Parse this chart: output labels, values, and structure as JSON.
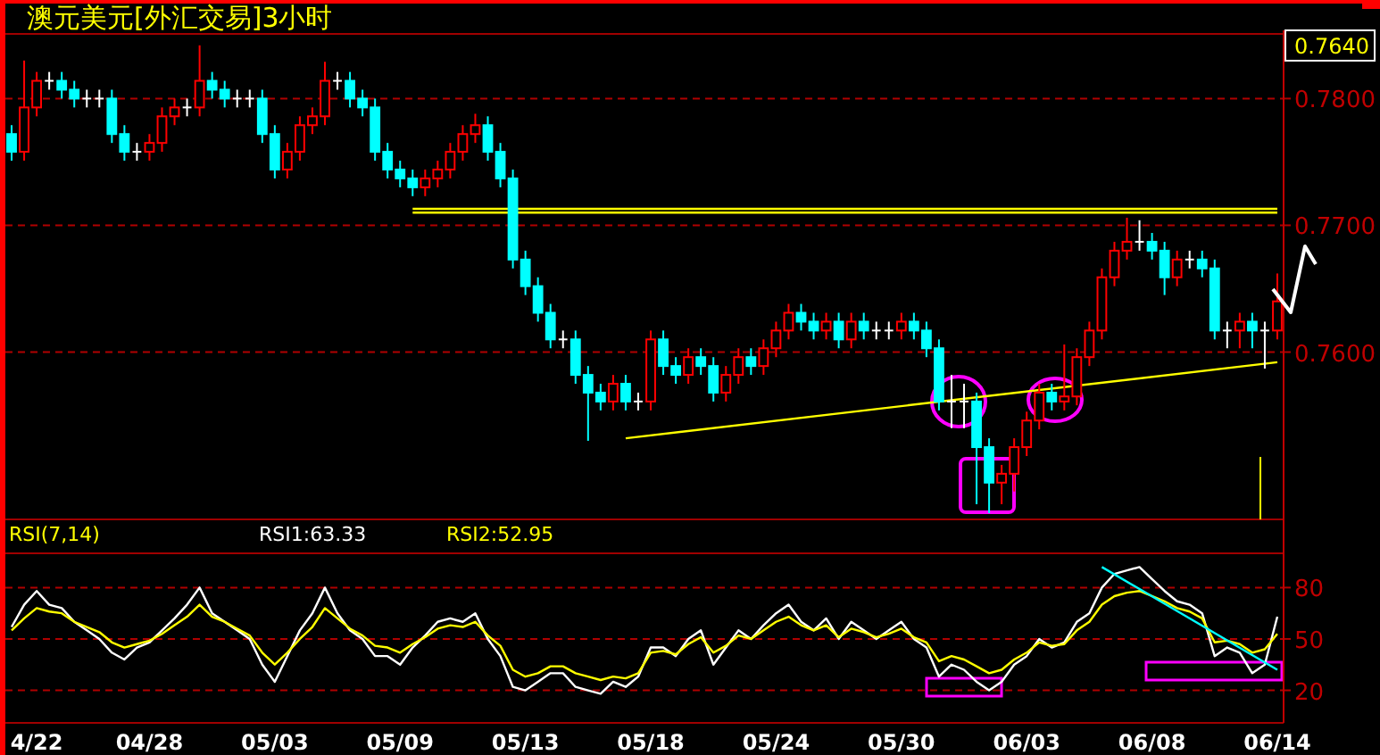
{
  "chart_data": [
    {
      "type": "candlestick",
      "title": "澳元美元[外汇交易]3小时",
      "annotations": [
        "0.7640"
      ],
      "tick_labels": "y",
      "grid": "y",
      "categories": [
        null,
        null,
        null,
        null,
        null,
        null,
        null,
        null,
        null,
        null,
        null,
        null,
        null,
        null,
        null,
        null,
        null,
        null,
        null,
        null,
        null,
        null,
        null,
        null,
        null,
        null,
        null,
        null,
        null,
        null,
        null,
        null,
        null,
        null,
        null,
        null,
        null,
        null,
        null,
        null,
        null,
        null,
        null,
        null,
        null,
        null,
        null,
        null,
        null,
        null,
        null,
        null,
        null,
        null,
        null,
        null,
        null,
        null,
        null,
        null,
        null,
        null,
        null,
        null,
        null,
        null,
        null,
        null,
        null,
        null,
        null,
        null,
        null,
        null,
        null,
        null,
        null,
        null,
        null,
        null,
        null,
        null,
        null,
        null,
        null,
        null,
        null,
        null,
        null,
        null,
        null,
        null,
        null,
        null,
        null,
        null,
        null,
        null,
        null,
        null,
        null,
        null
      ],
      "ylim": [
        0.7468,
        0.7851
      ],
      "yticks": [
        {
          "value": 0.78,
          "label": "0.7800"
        },
        {
          "value": 0.77,
          "label": "0.7700"
        },
        {
          "value": 0.76,
          "label": "0.7600"
        }
      ],
      "series": [
        {
          "type": "line",
          "color": "#ffff00",
          "values": [
            null,
            null,
            null,
            null,
            null,
            null,
            null,
            null,
            null,
            null,
            null,
            null,
            null,
            null,
            null,
            null,
            null,
            null,
            null,
            null,
            null,
            null,
            null,
            null,
            null,
            null,
            null,
            null,
            null,
            null,
            null,
            null,
            0.7713,
            null,
            null,
            null,
            null,
            null,
            null,
            null,
            null,
            null,
            null,
            null,
            null,
            null,
            null,
            null,
            null,
            null,
            null,
            null,
            null,
            null,
            null,
            null,
            null,
            null,
            null,
            null,
            null,
            null,
            null,
            null,
            null,
            null,
            null,
            null,
            null,
            null,
            null,
            null,
            null,
            null,
            null,
            null,
            null,
            null,
            null,
            null,
            null,
            null,
            null,
            null,
            null,
            null,
            null,
            null,
            null,
            null,
            null,
            null,
            null,
            null,
            null,
            null,
            null,
            null,
            null,
            null,
            null,
            0.7713
          ]
        },
        {
          "type": "line",
          "color": "#ffff00",
          "values": [
            null,
            null,
            null,
            null,
            null,
            null,
            null,
            null,
            null,
            null,
            null,
            null,
            null,
            null,
            null,
            null,
            null,
            null,
            null,
            null,
            null,
            null,
            null,
            null,
            null,
            null,
            null,
            null,
            null,
            null,
            null,
            null,
            0.771,
            null,
            null,
            null,
            null,
            null,
            null,
            null,
            null,
            null,
            null,
            null,
            null,
            null,
            null,
            null,
            null,
            null,
            null,
            null,
            null,
            null,
            null,
            null,
            null,
            null,
            null,
            null,
            null,
            null,
            null,
            null,
            null,
            null,
            null,
            null,
            null,
            null,
            null,
            null,
            null,
            null,
            null,
            null,
            null,
            null,
            null,
            null,
            null,
            null,
            null,
            null,
            null,
            null,
            null,
            null,
            null,
            null,
            null,
            null,
            null,
            null,
            null,
            null,
            null,
            null,
            null,
            null,
            null,
            0.771
          ]
        },
        {
          "type": "line",
          "color": "#ffff00",
          "values": [
            null,
            null,
            null,
            null,
            null,
            null,
            null,
            null,
            null,
            null,
            null,
            null,
            null,
            null,
            null,
            null,
            null,
            null,
            null,
            null,
            null,
            null,
            null,
            null,
            null,
            null,
            null,
            null,
            null,
            null,
            null,
            null,
            null,
            null,
            null,
            null,
            null,
            null,
            null,
            null,
            null,
            null,
            null,
            null,
            null,
            null,
            null,
            null,
            null,
            0.7532,
            null,
            null,
            null,
            null,
            null,
            null,
            null,
            null,
            null,
            null,
            null,
            null,
            null,
            null,
            null,
            null,
            null,
            null,
            null,
            null,
            null,
            null,
            null,
            null,
            null,
            null,
            null,
            null,
            null,
            null,
            null,
            null,
            null,
            null,
            null,
            null,
            null,
            null,
            null,
            null,
            null,
            null,
            null,
            null,
            null,
            null,
            null,
            null,
            null,
            null,
            null,
            0.7592
          ]
        }
      ],
      "ohlc": [
        [
          0.7772,
          0.7779,
          0.7751,
          0.7758
        ],
        [
          0.7758,
          0.783,
          0.7751,
          0.7793
        ],
        [
          0.7793,
          0.7821,
          0.7786,
          0.7814
        ],
        [
          0.7814,
          0.7821,
          0.7807,
          0.7814
        ],
        [
          0.7814,
          0.7821,
          0.78,
          0.7807
        ],
        [
          0.7807,
          0.7814,
          0.7793,
          0.78
        ],
        [
          0.78,
          0.7807,
          0.7793,
          0.78
        ],
        [
          0.78,
          0.7807,
          0.7793,
          0.78
        ],
        [
          0.78,
          0.7807,
          0.7765,
          0.7772
        ],
        [
          0.7772,
          0.7779,
          0.7751,
          0.7758
        ],
        [
          0.7758,
          0.7765,
          0.7751,
          0.7758
        ],
        [
          0.7758,
          0.7772,
          0.7751,
          0.7765
        ],
        [
          0.7765,
          0.7793,
          0.7758,
          0.7786
        ],
        [
          0.7786,
          0.78,
          0.7779,
          0.7793
        ],
        [
          0.7793,
          0.78,
          0.7786,
          0.7793
        ],
        [
          0.7793,
          0.7842,
          0.7786,
          0.7814
        ],
        [
          0.7814,
          0.7821,
          0.78,
          0.7807
        ],
        [
          0.7807,
          0.7814,
          0.7793,
          0.78
        ],
        [
          0.78,
          0.7807,
          0.7793,
          0.78
        ],
        [
          0.78,
          0.7807,
          0.7793,
          0.78
        ],
        [
          0.78,
          0.7807,
          0.7765,
          0.7772
        ],
        [
          0.7772,
          0.7779,
          0.7737,
          0.7744
        ],
        [
          0.7744,
          0.7765,
          0.7737,
          0.7758
        ],
        [
          0.7758,
          0.7786,
          0.7751,
          0.7779
        ],
        [
          0.7779,
          0.7793,
          0.7772,
          0.7786
        ],
        [
          0.7786,
          0.7829,
          0.7779,
          0.7814
        ],
        [
          0.7814,
          0.7821,
          0.7807,
          0.7814
        ],
        [
          0.7814,
          0.7821,
          0.7793,
          0.78
        ],
        [
          0.78,
          0.7807,
          0.7786,
          0.7793
        ],
        [
          0.7793,
          0.78,
          0.7751,
          0.7758
        ],
        [
          0.7758,
          0.7765,
          0.7737,
          0.7744
        ],
        [
          0.7744,
          0.7751,
          0.773,
          0.7737
        ],
        [
          0.7737,
          0.7744,
          0.7723,
          0.773
        ],
        [
          0.773,
          0.7744,
          0.7723,
          0.7737
        ],
        [
          0.7737,
          0.7751,
          0.773,
          0.7744
        ],
        [
          0.7744,
          0.7765,
          0.7737,
          0.7758
        ],
        [
          0.7758,
          0.7779,
          0.7751,
          0.7772
        ],
        [
          0.7772,
          0.7788,
          0.7765,
          0.7779
        ],
        [
          0.7779,
          0.7786,
          0.7751,
          0.7758
        ],
        [
          0.7758,
          0.7765,
          0.773,
          0.7737
        ],
        [
          0.7737,
          0.7744,
          0.7666,
          0.7673
        ],
        [
          0.7673,
          0.768,
          0.7645,
          0.7652
        ],
        [
          0.7652,
          0.7659,
          0.7624,
          0.7631
        ],
        [
          0.7631,
          0.7638,
          0.7603,
          0.761
        ],
        [
          0.761,
          0.7617,
          0.7603,
          0.761
        ],
        [
          0.761,
          0.7617,
          0.7575,
          0.7582
        ],
        [
          0.7582,
          0.7589,
          0.753,
          0.7568
        ],
        [
          0.7568,
          0.7575,
          0.7554,
          0.7561
        ],
        [
          0.7561,
          0.7582,
          0.7554,
          0.7575
        ],
        [
          0.7575,
          0.7582,
          0.7554,
          0.7561
        ],
        [
          0.7561,
          0.7568,
          0.7554,
          0.7561
        ],
        [
          0.7561,
          0.7617,
          0.7554,
          0.761
        ],
        [
          0.761,
          0.7617,
          0.7582,
          0.7589
        ],
        [
          0.7589,
          0.7596,
          0.7575,
          0.7582
        ],
        [
          0.7582,
          0.7603,
          0.7575,
          0.7596
        ],
        [
          0.7596,
          0.7603,
          0.7582,
          0.7589
        ],
        [
          0.7589,
          0.7596,
          0.7561,
          0.7568
        ],
        [
          0.7568,
          0.7589,
          0.7561,
          0.7582
        ],
        [
          0.7582,
          0.7603,
          0.7575,
          0.7596
        ],
        [
          0.7596,
          0.7603,
          0.7582,
          0.7589
        ],
        [
          0.7589,
          0.761,
          0.7582,
          0.7603
        ],
        [
          0.7603,
          0.7624,
          0.7596,
          0.7617
        ],
        [
          0.7617,
          0.7638,
          0.761,
          0.7631
        ],
        [
          0.7631,
          0.7638,
          0.7617,
          0.7624
        ],
        [
          0.7624,
          0.7631,
          0.761,
          0.7617
        ],
        [
          0.7617,
          0.7631,
          0.761,
          0.7624
        ],
        [
          0.7624,
          0.7631,
          0.7603,
          0.761
        ],
        [
          0.761,
          0.7631,
          0.7603,
          0.7624
        ],
        [
          0.7624,
          0.7631,
          0.761,
          0.7617
        ],
        [
          0.7617,
          0.7624,
          0.761,
          0.7617
        ],
        [
          0.7617,
          0.7624,
          0.761,
          0.7617
        ],
        [
          0.7617,
          0.7631,
          0.761,
          0.7624
        ],
        [
          0.7624,
          0.7631,
          0.761,
          0.7617
        ],
        [
          0.7617,
          0.7624,
          0.7596,
          0.7603
        ],
        [
          0.7603,
          0.761,
          0.7554,
          0.7561
        ],
        [
          0.7561,
          0.7582,
          0.754,
          0.7561
        ],
        [
          0.7561,
          0.7575,
          0.754,
          0.7561
        ],
        [
          0.7561,
          0.7568,
          0.748,
          0.7525
        ],
        [
          0.7525,
          0.7532,
          0.7473,
          0.7497
        ],
        [
          0.7497,
          0.7511,
          0.748,
          0.7504
        ],
        [
          0.7504,
          0.7532,
          0.749,
          0.7525
        ],
        [
          0.7525,
          0.7553,
          0.7518,
          0.7546
        ],
        [
          0.7546,
          0.7575,
          0.7539,
          0.7568
        ],
        [
          0.7568,
          0.7575,
          0.7554,
          0.7561
        ],
        [
          0.7561,
          0.7606,
          0.7554,
          0.7565
        ],
        [
          0.7565,
          0.7603,
          0.7558,
          0.7596
        ],
        [
          0.7596,
          0.7624,
          0.7589,
          0.7617
        ],
        [
          0.7617,
          0.7666,
          0.761,
          0.7659
        ],
        [
          0.7659,
          0.7687,
          0.7652,
          0.768
        ],
        [
          0.768,
          0.7706,
          0.7673,
          0.7687
        ],
        [
          0.7687,
          0.7704,
          0.768,
          0.7687
        ],
        [
          0.7687,
          0.7694,
          0.7673,
          0.768
        ],
        [
          0.768,
          0.7687,
          0.7645,
          0.7659
        ],
        [
          0.7659,
          0.768,
          0.7652,
          0.7673
        ],
        [
          0.7673,
          0.768,
          0.7666,
          0.7673
        ],
        [
          0.7673,
          0.768,
          0.7659,
          0.7666
        ],
        [
          0.7666,
          0.7673,
          0.761,
          0.7617
        ],
        [
          0.7617,
          0.7624,
          0.7603,
          0.7617
        ],
        [
          0.7617,
          0.7631,
          0.7603,
          0.7624
        ],
        [
          0.7624,
          0.7631,
          0.7603,
          0.7617
        ],
        [
          0.7617,
          0.7624,
          0.7587,
          0.7617
        ],
        [
          0.7617,
          0.7662,
          0.761,
          0.764
        ]
      ]
    },
    {
      "type": "line",
      "annotations": [
        "RSI(7,14)",
        "RSI1:63.33",
        "RSI2:52.95"
      ],
      "grid": "y",
      "categories": [
        null,
        null,
        "4/22",
        null,
        null,
        null,
        null,
        null,
        null,
        null,
        null,
        "04/28",
        null,
        null,
        null,
        null,
        null,
        null,
        null,
        null,
        null,
        "05/03",
        null,
        null,
        null,
        null,
        null,
        null,
        null,
        null,
        null,
        "05/09",
        null,
        null,
        null,
        null,
        null,
        null,
        null,
        null,
        null,
        "05/13",
        null,
        null,
        null,
        null,
        null,
        null,
        null,
        null,
        null,
        "05/18",
        null,
        null,
        null,
        null,
        null,
        null,
        null,
        null,
        null,
        "05/24",
        null,
        null,
        null,
        null,
        null,
        null,
        null,
        null,
        null,
        "05/30",
        null,
        null,
        null,
        null,
        null,
        null,
        null,
        null,
        null,
        "06/03",
        null,
        null,
        null,
        null,
        null,
        null,
        null,
        null,
        null,
        "06/08",
        null,
        null,
        null,
        null,
        null,
        null,
        null,
        null,
        null,
        "06/14"
      ],
      "ylim": [
        1,
        100
      ],
      "yticks": [
        20,
        50,
        80
      ],
      "series": [
        {
          "color": "#ffffff",
          "values": [
            57,
            70,
            78,
            70,
            68,
            60,
            55,
            50,
            42,
            38,
            45,
            48,
            55,
            62,
            70,
            80,
            65,
            60,
            55,
            50,
            35,
            25,
            40,
            55,
            65,
            80,
            65,
            55,
            50,
            40,
            40,
            35,
            45,
            52,
            60,
            62,
            60,
            65,
            50,
            40,
            22,
            20,
            25,
            30,
            30,
            22,
            20,
            18,
            25,
            22,
            28,
            45,
            45,
            40,
            50,
            55,
            35,
            45,
            55,
            50,
            58,
            65,
            70,
            60,
            55,
            62,
            50,
            60,
            55,
            50,
            55,
            60,
            50,
            45,
            28,
            35,
            32,
            25,
            20,
            25,
            35,
            40,
            50,
            45,
            48,
            60,
            65,
            80,
            88,
            90,
            92,
            85,
            78,
            72,
            70,
            65,
            40,
            45,
            42,
            30,
            35,
            63
          ]
        },
        {
          "color": "#ffff00",
          "values": [
            55,
            62,
            68,
            66,
            65,
            60,
            57,
            54,
            48,
            45,
            47,
            49,
            53,
            58,
            63,
            70,
            63,
            60,
            56,
            52,
            42,
            35,
            42,
            50,
            57,
            68,
            62,
            56,
            52,
            46,
            45,
            42,
            47,
            51,
            56,
            58,
            57,
            60,
            52,
            46,
            32,
            28,
            30,
            34,
            34,
            30,
            28,
            26,
            28,
            27,
            30,
            42,
            43,
            41,
            47,
            51,
            42,
            46,
            52,
            50,
            55,
            60,
            63,
            58,
            55,
            58,
            51,
            56,
            54,
            51,
            53,
            56,
            51,
            48,
            37,
            40,
            38,
            34,
            30,
            32,
            38,
            42,
            48,
            46,
            47,
            55,
            60,
            70,
            75,
            77,
            78,
            75,
            72,
            68,
            66,
            62,
            48,
            49,
            47,
            42,
            44,
            53
          ]
        },
        {
          "color": "#00ffff",
          "values": [
            null,
            null,
            null,
            null,
            null,
            null,
            null,
            null,
            null,
            null,
            null,
            null,
            null,
            null,
            null,
            null,
            null,
            null,
            null,
            null,
            null,
            null,
            null,
            null,
            null,
            null,
            null,
            null,
            null,
            null,
            null,
            null,
            null,
            null,
            null,
            null,
            null,
            null,
            null,
            null,
            null,
            null,
            null,
            null,
            null,
            null,
            null,
            null,
            null,
            null,
            null,
            null,
            null,
            null,
            null,
            null,
            null,
            null,
            null,
            null,
            null,
            null,
            null,
            null,
            null,
            null,
            null,
            null,
            null,
            null,
            null,
            null,
            null,
            null,
            null,
            null,
            null,
            null,
            null,
            null,
            null,
            null,
            null,
            null,
            null,
            null,
            null,
            92,
            null,
            null,
            null,
            null,
            null,
            null,
            null,
            null,
            null,
            null,
            null,
            null,
            null,
            32
          ]
        }
      ]
    }
  ]
}
